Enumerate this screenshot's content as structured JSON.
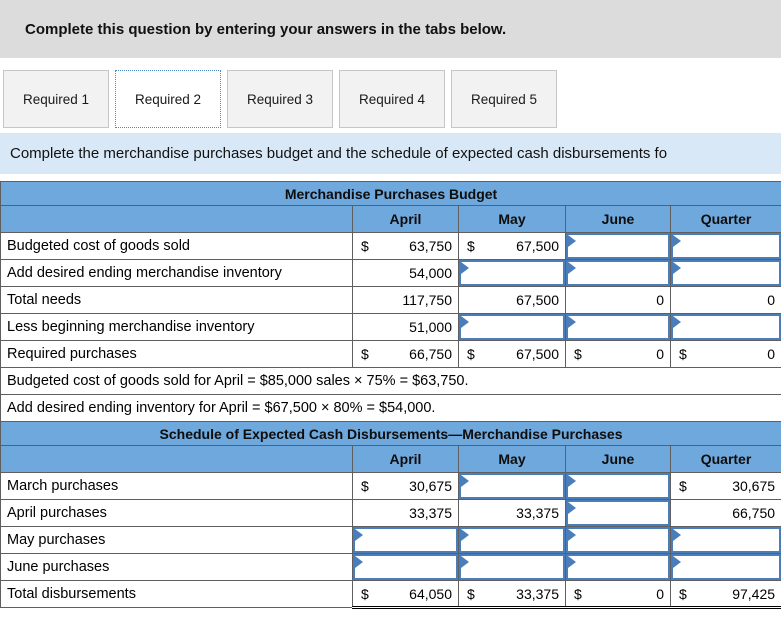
{
  "colors": {
    "header_blue": "#6fa8dc",
    "input_border_blue": "#4a7ebb",
    "instruction_bg": "#d9e8f7",
    "banner_bg": "#dcdcdc",
    "active_tab_border": "#4a86c8"
  },
  "banner": {
    "text": "Complete this question by entering your answers in the tabs below."
  },
  "tabs": [
    {
      "label": "Required 1",
      "active": false
    },
    {
      "label": "Required 2",
      "active": true
    },
    {
      "label": "Required 3",
      "active": false
    },
    {
      "label": "Required 4",
      "active": false
    },
    {
      "label": "Required 5",
      "active": false
    }
  ],
  "instruction": "Complete the merchandise purchases budget and the schedule of expected cash disbursements fo",
  "tables": [
    {
      "title": "Merchandise Purchases Budget",
      "columns": [
        "April",
        "May",
        "June",
        "Quarter"
      ],
      "rows": [
        {
          "label": "Budgeted cost of goods sold",
          "cells": [
            {
              "type": "value",
              "prefix": "$",
              "value": "63,750"
            },
            {
              "type": "value",
              "prefix": "$",
              "value": "67,500"
            },
            {
              "type": "input"
            },
            {
              "type": "input"
            }
          ]
        },
        {
          "label": "Add desired ending merchandise inventory",
          "cells": [
            {
              "type": "value",
              "value": "54,000"
            },
            {
              "type": "input"
            },
            {
              "type": "input"
            },
            {
              "type": "input"
            }
          ]
        },
        {
          "label": "Total needs",
          "cells": [
            {
              "type": "value",
              "value": "117,750"
            },
            {
              "type": "value",
              "value": "67,500"
            },
            {
              "type": "value",
              "value": "0"
            },
            {
              "type": "value",
              "value": "0"
            }
          ]
        },
        {
          "label": "Less beginning merchandise inventory",
          "cells": [
            {
              "type": "value",
              "value": "51,000"
            },
            {
              "type": "input"
            },
            {
              "type": "input"
            },
            {
              "type": "input"
            }
          ]
        },
        {
          "label": "Required purchases",
          "cells": [
            {
              "type": "value",
              "prefix": "$",
              "value": "66,750"
            },
            {
              "type": "value",
              "prefix": "$",
              "value": "67,500"
            },
            {
              "type": "value",
              "prefix": "$",
              "value": "0"
            },
            {
              "type": "value",
              "prefix": "$",
              "value": "0"
            }
          ]
        }
      ],
      "notes": [
        "Budgeted cost of goods sold for April = $85,000 sales × 75% = $63,750.",
        "Add desired ending inventory for April = $67,500 × 80% = $54,000."
      ]
    },
    {
      "title": "Schedule of Expected Cash Disbursements—Merchandise Purchases",
      "columns": [
        "April",
        "May",
        "June",
        "Quarter"
      ],
      "rows": [
        {
          "label": "March purchases",
          "cells": [
            {
              "type": "value",
              "prefix": "$",
              "value": "30,675"
            },
            {
              "type": "input"
            },
            {
              "type": "input"
            },
            {
              "type": "value",
              "prefix": "$",
              "value": "30,675"
            }
          ]
        },
        {
          "label": "April purchases",
          "cells": [
            {
              "type": "value",
              "value": "33,375"
            },
            {
              "type": "value",
              "value": "33,375"
            },
            {
              "type": "input"
            },
            {
              "type": "value",
              "value": "66,750"
            }
          ]
        },
        {
          "label": "May purchases",
          "cells": [
            {
              "type": "input"
            },
            {
              "type": "input"
            },
            {
              "type": "input"
            },
            {
              "type": "input"
            }
          ]
        },
        {
          "label": "June purchases",
          "cells": [
            {
              "type": "input"
            },
            {
              "type": "input"
            },
            {
              "type": "input"
            },
            {
              "type": "input"
            }
          ]
        },
        {
          "label": "Total disbursements",
          "total": true,
          "cells": [
            {
              "type": "value",
              "prefix": "$",
              "value": "64,050"
            },
            {
              "type": "value",
              "prefix": "$",
              "value": "33,375"
            },
            {
              "type": "value",
              "prefix": "$",
              "value": "0"
            },
            {
              "type": "value",
              "prefix": "$",
              "value": "97,425"
            }
          ]
        }
      ],
      "notes": []
    }
  ]
}
